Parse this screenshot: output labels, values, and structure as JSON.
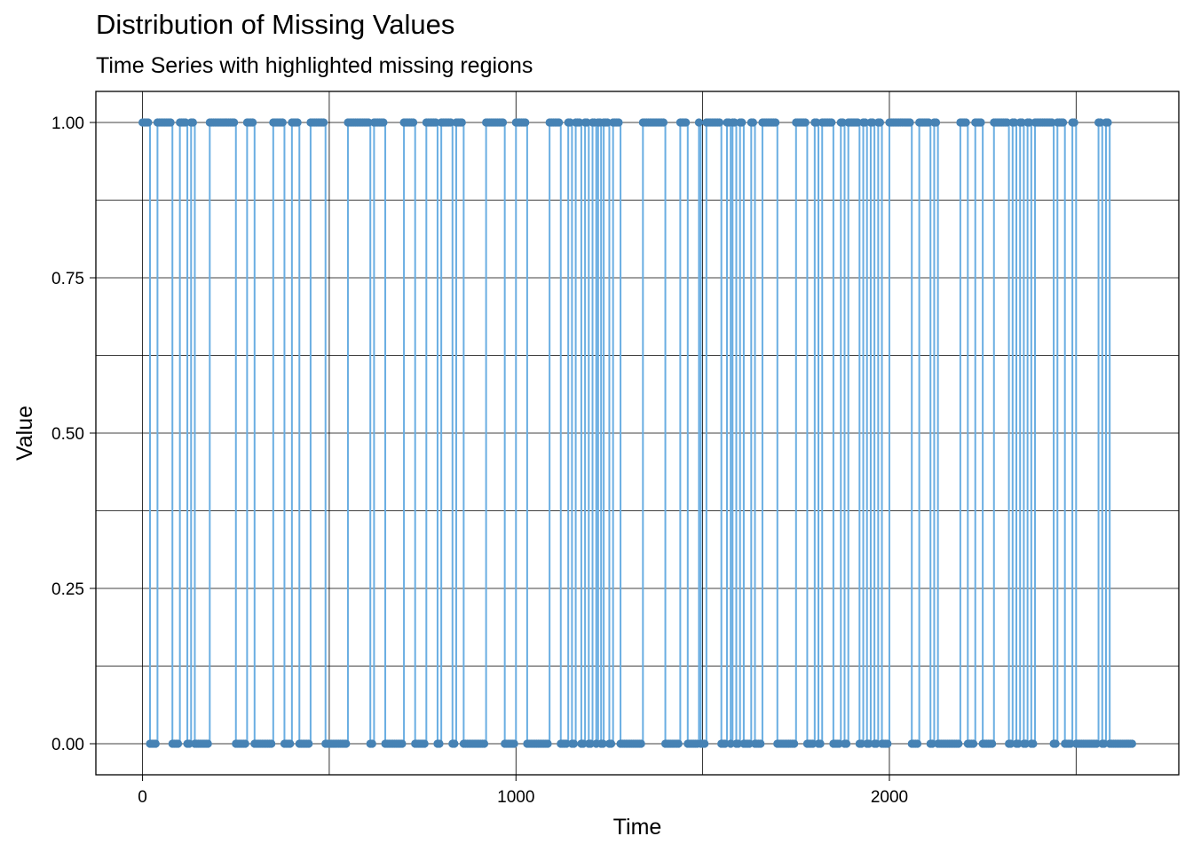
{
  "chart_data": {
    "type": "line",
    "title": "Distribution of Missing Values",
    "subtitle": "Time Series with highlighted missing regions",
    "xlabel": "Time",
    "ylabel": "Value",
    "xlim": [
      -125,
      2775
    ],
    "ylim": [
      -0.05,
      1.05
    ],
    "x_ticks": [
      0,
      1000,
      2000
    ],
    "y_ticks": [
      0.0,
      0.25,
      0.5,
      0.75,
      1.0
    ],
    "x_tick_labels": [
      "0",
      "1000",
      "2000"
    ],
    "y_tick_labels": [
      "0.00",
      "0.25",
      "0.50",
      "0.75",
      "1.00"
    ],
    "x_gridlines": [
      0,
      500,
      1000,
      1500,
      2000,
      2500
    ],
    "y_gridlines": [
      0.0,
      0.125,
      0.25,
      0.375,
      0.5,
      0.625,
      0.75,
      0.875,
      1.0
    ],
    "grid": true,
    "series": [
      {
        "line_color": "#6aaee2",
        "point_color": "#4682b4",
        "x_max": 2650,
        "runs": [
          [
            0,
            1,
            20
          ],
          [
            20,
            0,
            40
          ],
          [
            40,
            1,
            80
          ],
          [
            80,
            0,
            100
          ],
          [
            100,
            1,
            120
          ],
          [
            120,
            0,
            130
          ],
          [
            130,
            1,
            140
          ],
          [
            140,
            0,
            180
          ],
          [
            180,
            1,
            250
          ],
          [
            250,
            0,
            280
          ],
          [
            280,
            1,
            300
          ],
          [
            300,
            0,
            350
          ],
          [
            350,
            1,
            380
          ],
          [
            380,
            0,
            400
          ],
          [
            400,
            1,
            420
          ],
          [
            420,
            0,
            450
          ],
          [
            450,
            1,
            490
          ],
          [
            490,
            0,
            550
          ],
          [
            550,
            1,
            610
          ],
          [
            610,
            0,
            620
          ],
          [
            620,
            1,
            650
          ],
          [
            650,
            0,
            700
          ],
          [
            700,
            1,
            730
          ],
          [
            730,
            0,
            760
          ],
          [
            760,
            1,
            790
          ],
          [
            790,
            0,
            800
          ],
          [
            800,
            1,
            830
          ],
          [
            830,
            0,
            840
          ],
          [
            840,
            1,
            860
          ],
          [
            860,
            0,
            920
          ],
          [
            920,
            1,
            970
          ],
          [
            970,
            0,
            1000
          ],
          [
            1000,
            1,
            1030
          ],
          [
            1030,
            0,
            1090
          ],
          [
            1090,
            1,
            1120
          ],
          [
            1120,
            0,
            1140
          ],
          [
            1140,
            1,
            1150
          ],
          [
            1150,
            0,
            1160
          ],
          [
            1160,
            1,
            1175
          ],
          [
            1175,
            0,
            1185
          ],
          [
            1185,
            1,
            1195
          ],
          [
            1195,
            0,
            1205
          ],
          [
            1205,
            1,
            1215
          ],
          [
            1215,
            0,
            1220
          ],
          [
            1220,
            1,
            1228
          ],
          [
            1228,
            0,
            1235
          ],
          [
            1235,
            1,
            1250
          ],
          [
            1250,
            0,
            1260
          ],
          [
            1260,
            1,
            1280
          ],
          [
            1280,
            0,
            1340
          ],
          [
            1340,
            1,
            1400
          ],
          [
            1400,
            0,
            1440
          ],
          [
            1440,
            1,
            1460
          ],
          [
            1460,
            0,
            1490
          ],
          [
            1490,
            1,
            1495
          ],
          [
            1495,
            0,
            1510
          ],
          [
            1510,
            1,
            1550
          ],
          [
            1550,
            0,
            1565
          ],
          [
            1565,
            1,
            1575
          ],
          [
            1575,
            0,
            1580
          ],
          [
            1580,
            1,
            1590
          ],
          [
            1590,
            0,
            1600
          ],
          [
            1600,
            1,
            1610
          ],
          [
            1610,
            0,
            1630
          ],
          [
            1630,
            1,
            1640
          ],
          [
            1640,
            0,
            1660
          ],
          [
            1660,
            1,
            1700
          ],
          [
            1700,
            0,
            1750
          ],
          [
            1750,
            1,
            1780
          ],
          [
            1780,
            0,
            1800
          ],
          [
            1800,
            1,
            1810
          ],
          [
            1810,
            0,
            1820
          ],
          [
            1820,
            1,
            1850
          ],
          [
            1850,
            0,
            1870
          ],
          [
            1870,
            1,
            1880
          ],
          [
            1880,
            0,
            1890
          ],
          [
            1890,
            1,
            1920
          ],
          [
            1920,
            0,
            1930
          ],
          [
            1930,
            1,
            1940
          ],
          [
            1940,
            0,
            1950
          ],
          [
            1950,
            1,
            1960
          ],
          [
            1960,
            0,
            1970
          ],
          [
            1970,
            1,
            1980
          ],
          [
            1980,
            0,
            2000
          ],
          [
            2000,
            1,
            2060
          ],
          [
            2060,
            0,
            2080
          ],
          [
            2080,
            1,
            2110
          ],
          [
            2110,
            0,
            2120
          ],
          [
            2120,
            1,
            2130
          ],
          [
            2130,
            0,
            2190
          ],
          [
            2190,
            1,
            2210
          ],
          [
            2210,
            0,
            2230
          ],
          [
            2230,
            1,
            2250
          ],
          [
            2250,
            0,
            2280
          ],
          [
            2280,
            1,
            2320
          ],
          [
            2320,
            0,
            2330
          ],
          [
            2330,
            1,
            2340
          ],
          [
            2340,
            0,
            2350
          ],
          [
            2350,
            1,
            2360
          ],
          [
            2360,
            0,
            2370
          ],
          [
            2370,
            1,
            2380
          ],
          [
            2380,
            0,
            2390
          ],
          [
            2390,
            1,
            2440
          ],
          [
            2440,
            0,
            2450
          ],
          [
            2450,
            1,
            2470
          ],
          [
            2470,
            0,
            2490
          ],
          [
            2490,
            1,
            2500
          ],
          [
            2500,
            0,
            2560
          ],
          [
            2560,
            1,
            2570
          ],
          [
            2570,
            0,
            2580
          ],
          [
            2580,
            1,
            2590
          ],
          [
            2590,
            0,
            2650
          ]
        ]
      }
    ]
  }
}
